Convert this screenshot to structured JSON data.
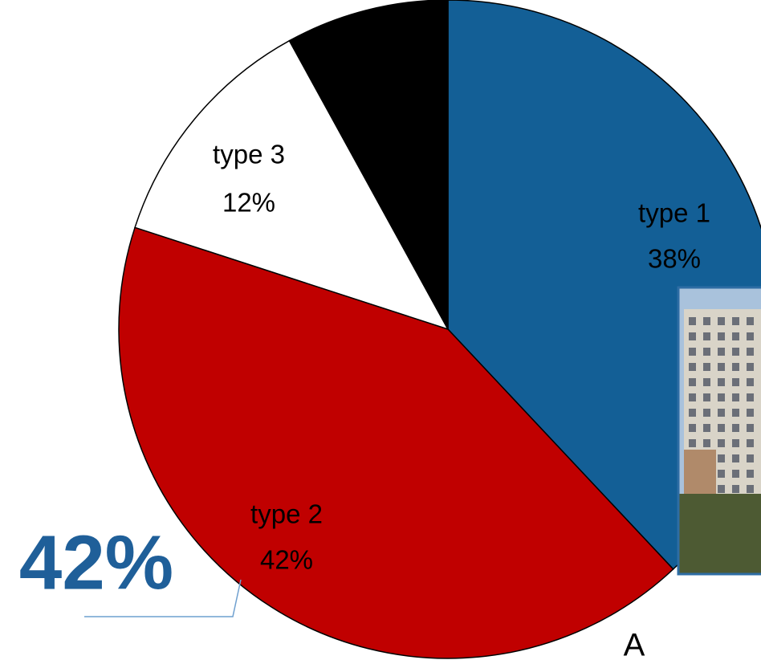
{
  "chart_data": {
    "type": "pie",
    "categories": [
      "type 1",
      "type 2",
      "type 3",
      null
    ],
    "values": [
      38,
      42,
      12,
      8
    ],
    "value_labels": [
      "38%",
      "42%",
      "12%",
      null
    ],
    "colors": [
      "#135f96",
      "#c00000",
      "#ffffff",
      "#000000"
    ],
    "start_angle": 0,
    "direction": "clockwise",
    "annotations": [
      "42%",
      "A"
    ]
  }
}
